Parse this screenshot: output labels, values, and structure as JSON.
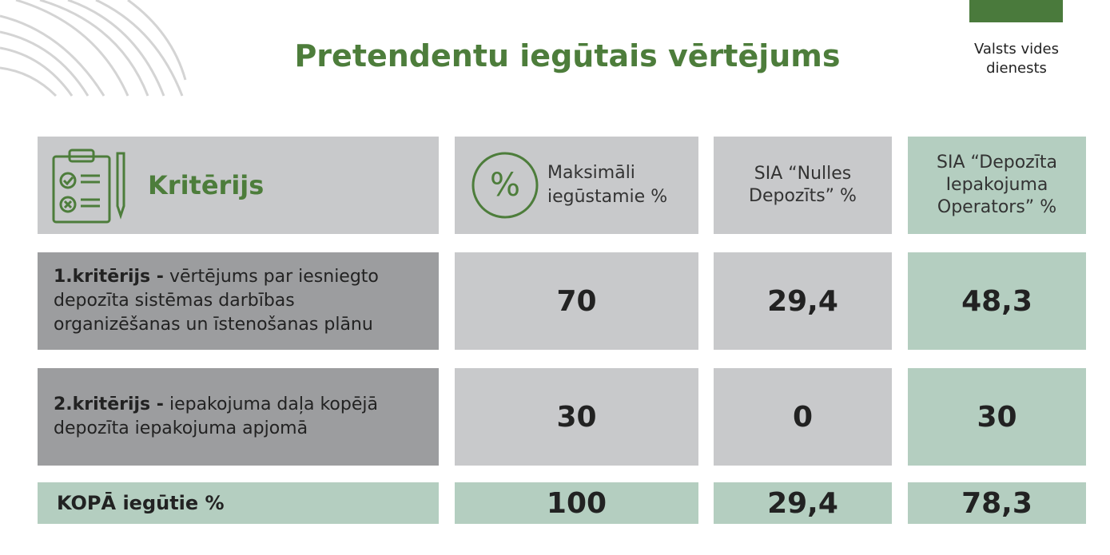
{
  "header": {
    "title": "Pretendentu iegūtais vērtējums",
    "logo_text": "Valsts vides dienests"
  },
  "table": {
    "columns": [
      "Kritērijs",
      "Maksimāli iegūstamie %",
      "SIA “Nulles Depozīts” %",
      "SIA “Depozīta Iepakojuma Operators” %"
    ],
    "rows": [
      {
        "label": "1.kritērijs -",
        "text": "vērtējums par iesniegto depozīta sistēmas darbības organizēšanas un īstenošanas plānu",
        "cells": [
          "70",
          "29,4",
          "48,3"
        ]
      },
      {
        "label": "2.kritērijs -",
        "text": "iepakojuma daļa kopējā depozīta iepakojuma apjomā",
        "cells": [
          "30",
          "0",
          "30"
        ]
      }
    ],
    "total": {
      "label": "KOPĀ iegūtie %",
      "cells": [
        "100",
        "29,4",
        "78,3"
      ]
    }
  }
}
